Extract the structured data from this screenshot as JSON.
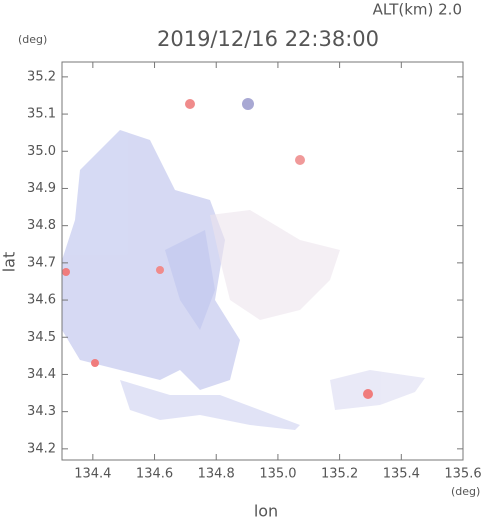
{
  "chart_data": {
    "type": "map",
    "title": "2019/12/16 22:38:00",
    "subtitle": "ALT(km) 2.0",
    "y_unit": "(deg)",
    "x_unit": "(deg)",
    "xlabel": "lon",
    "ylabel": "lat",
    "xlim": [
      134.3,
      135.6
    ],
    "ylim": [
      34.17,
      35.24
    ],
    "xticks": [
      134.4,
      134.6,
      134.8,
      {
        "value": 135,
        "label": "135.0"
      },
      135.2,
      135.4,
      135.6
    ],
    "yticks": [
      34.2,
      34.3,
      34.4,
      34.5,
      34.6,
      34.7,
      34.8,
      34.9,
      {
        "value": 35,
        "label": "35.0"
      },
      35.1,
      35.2
    ]
  }
}
